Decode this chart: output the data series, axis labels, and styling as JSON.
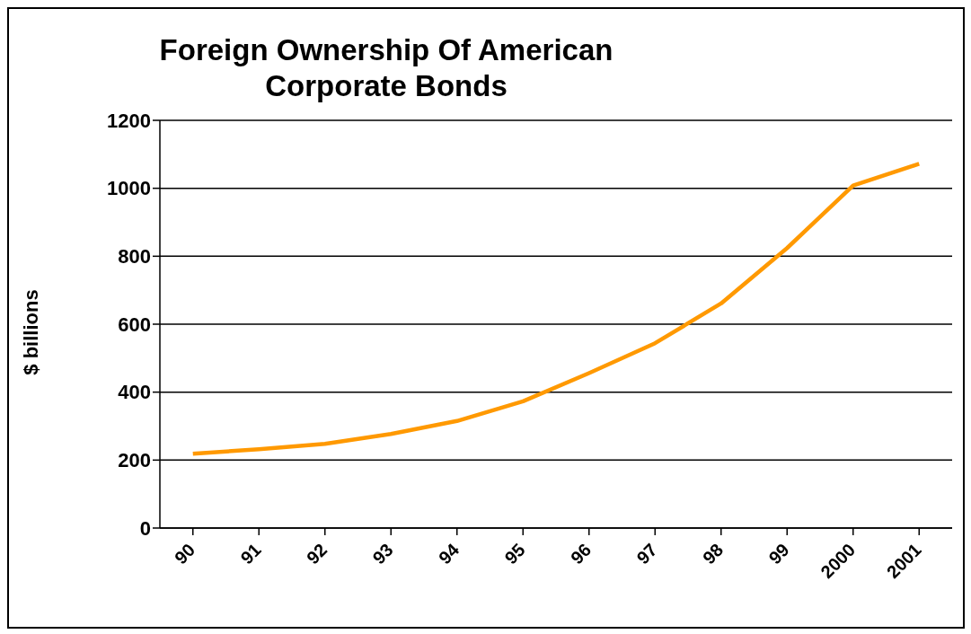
{
  "chart_data": {
    "type": "line",
    "title": "Foreign Ownership Of American Corporate Bonds",
    "ylabel": "$ billions",
    "categories": [
      "90",
      "91",
      "92",
      "93",
      "94",
      "95",
      "96",
      "97",
      "98",
      "99",
      "2000",
      "2001"
    ],
    "series": [
      {
        "color": "#ff9900",
        "values": [
          219,
          232,
          248,
          277,
          315,
          373,
          456,
          544,
          661,
          824,
          1008,
          1072
        ]
      }
    ],
    "ylim": [
      0,
      1200
    ],
    "yticks": [
      0,
      200,
      400,
      600,
      800,
      1000,
      1200
    ],
    "grid": "y",
    "legend": false,
    "marker": "none",
    "line_style": "solid"
  }
}
